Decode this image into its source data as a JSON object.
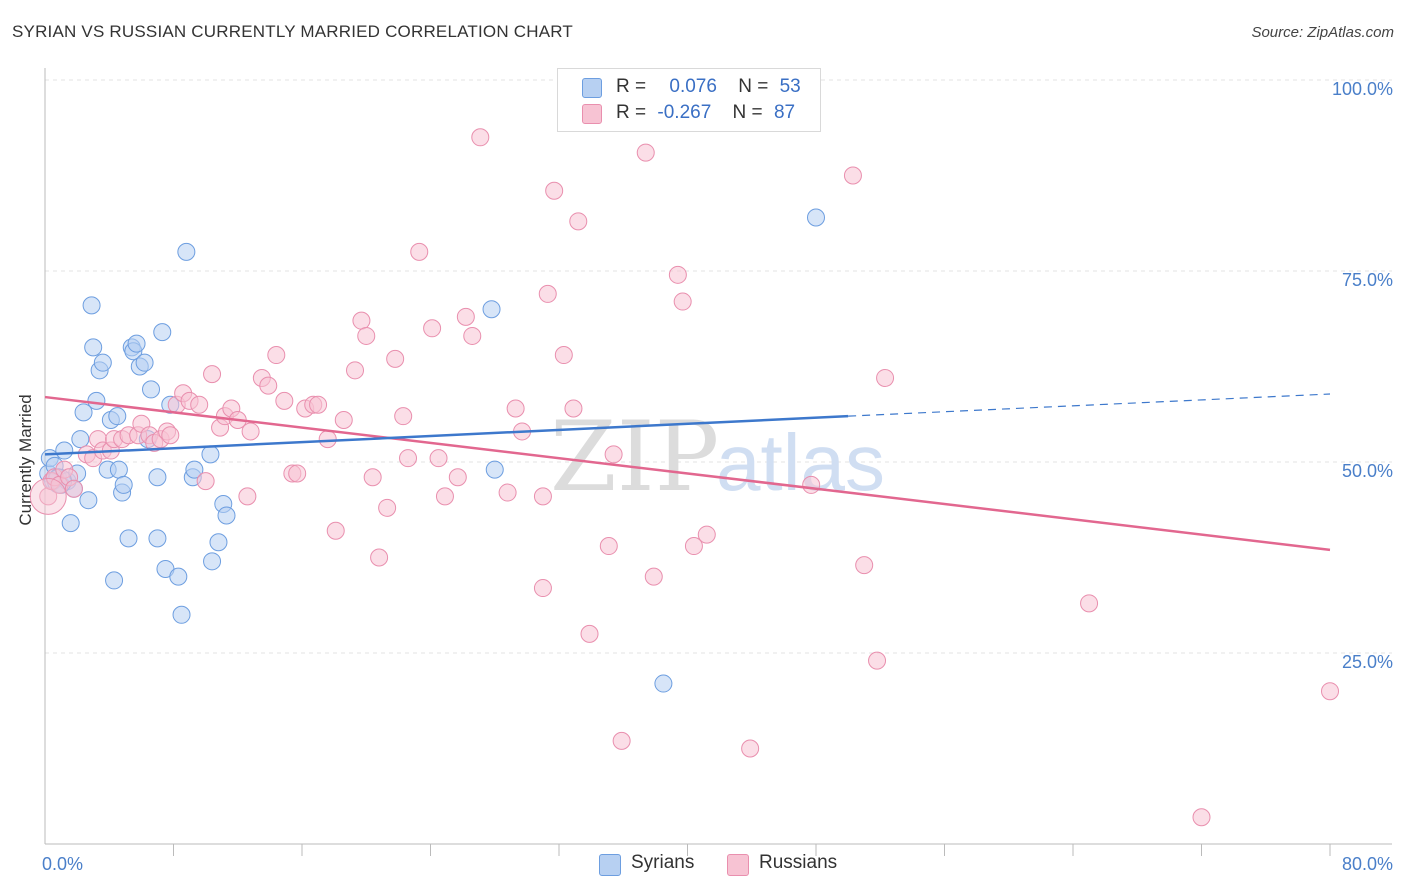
{
  "header": {
    "title": "SYRIAN VS RUSSIAN CURRENTLY MARRIED CORRELATION CHART",
    "source": "Source: ZipAtlas.com"
  },
  "stats": {
    "syrians": {
      "r_label": "R =",
      "r_value": "0.076",
      "n_label": "N =",
      "n_value": "53"
    },
    "russians": {
      "r_label": "R =",
      "r_value": "-0.267",
      "n_label": "N =",
      "n_value": "87"
    }
  },
  "legend": {
    "syrians": "Syrians",
    "russians": "Russians"
  },
  "watermark": {
    "zip": "ZIP",
    "atlas": "atlas"
  },
  "colors": {
    "syrians_fill": "#b7d0f2",
    "syrians_stroke": "#6d9ee0",
    "syrians_line": "#3d78cc",
    "russians_fill": "#f7c3d3",
    "russians_stroke": "#e98fae",
    "russians_line": "#e2678f",
    "grid": "#e3e3e3",
    "tick_text": "#4a7fc9"
  },
  "chart_data": {
    "type": "scatter",
    "title": "SYRIAN VS RUSSIAN CURRENTLY MARRIED CORRELATION CHART",
    "xlabel": "",
    "ylabel": "Currently Married",
    "xlim": [
      0,
      80
    ],
    "ylim": [
      0,
      100
    ],
    "x_tick_labels": [
      "0.0%",
      "80.0%"
    ],
    "y_ticks": [
      25,
      50,
      75,
      100
    ],
    "y_tick_labels": [
      "25.0%",
      "50.0%",
      "75.0%",
      "100.0%"
    ],
    "grid": true,
    "legend_position": "bottom-center",
    "series": [
      {
        "name": "Syrians",
        "r": 0.076,
        "n": 53,
        "trend": {
          "x": [
            0,
            50
          ],
          "y": [
            51.0,
            56.0
          ],
          "dashed_to": [
            80,
            58.9
          ]
        },
        "points": [
          [
            0.2,
            48.5
          ],
          [
            0.3,
            50.5
          ],
          [
            0.5,
            47.5
          ],
          [
            0.6,
            49.5
          ],
          [
            0.8,
            48.0
          ],
          [
            1.0,
            47.0
          ],
          [
            1.2,
            51.5
          ],
          [
            1.4,
            47.5
          ],
          [
            1.6,
            42.0
          ],
          [
            1.8,
            46.5
          ],
          [
            2.0,
            48.5
          ],
          [
            2.2,
            53.0
          ],
          [
            2.4,
            56.5
          ],
          [
            2.7,
            45.0
          ],
          [
            2.9,
            70.5
          ],
          [
            3.0,
            65.0
          ],
          [
            3.2,
            58.0
          ],
          [
            3.4,
            62.0
          ],
          [
            3.6,
            63.0
          ],
          [
            3.9,
            49.0
          ],
          [
            4.1,
            55.5
          ],
          [
            4.3,
            34.5
          ],
          [
            4.5,
            56.0
          ],
          [
            4.6,
            49.0
          ],
          [
            4.8,
            46.0
          ],
          [
            4.9,
            47.0
          ],
          [
            5.2,
            40.0
          ],
          [
            5.4,
            65.0
          ],
          [
            5.5,
            64.5
          ],
          [
            5.7,
            65.5
          ],
          [
            5.9,
            62.5
          ],
          [
            6.2,
            63.0
          ],
          [
            6.4,
            53.0
          ],
          [
            6.6,
            59.5
          ],
          [
            7.0,
            48.0
          ],
          [
            7.0,
            40.0
          ],
          [
            7.3,
            67.0
          ],
          [
            7.5,
            36.0
          ],
          [
            7.8,
            57.5
          ],
          [
            8.3,
            35.0
          ],
          [
            8.5,
            30.0
          ],
          [
            8.8,
            77.5
          ],
          [
            9.2,
            48.0
          ],
          [
            9.3,
            49.0
          ],
          [
            10.3,
            51.0
          ],
          [
            10.4,
            37.0
          ],
          [
            10.8,
            39.5
          ],
          [
            11.1,
            44.5
          ],
          [
            11.3,
            43.0
          ],
          [
            27.8,
            70.0
          ],
          [
            28.0,
            49.0
          ],
          [
            38.5,
            21.0
          ],
          [
            48.0,
            82.0
          ]
        ]
      },
      {
        "name": "Russians",
        "r": -0.267,
        "n": 87,
        "trend": {
          "x": [
            0,
            80
          ],
          "y": [
            58.5,
            38.5
          ]
        },
        "points": [
          [
            0.2,
            45.5
          ],
          [
            0.4,
            47.5
          ],
          [
            0.6,
            48.0
          ],
          [
            0.9,
            47.0
          ],
          [
            1.2,
            49.0
          ],
          [
            1.5,
            48.0
          ],
          [
            1.8,
            46.5
          ],
          [
            2.6,
            51.0
          ],
          [
            3.0,
            50.5
          ],
          [
            3.3,
            53.0
          ],
          [
            3.6,
            51.5
          ],
          [
            4.1,
            51.5
          ],
          [
            4.3,
            53.0
          ],
          [
            4.8,
            53.0
          ],
          [
            5.2,
            53.5
          ],
          [
            5.8,
            53.5
          ],
          [
            6.0,
            55.0
          ],
          [
            6.5,
            53.5
          ],
          [
            6.8,
            52.5
          ],
          [
            7.2,
            53.0
          ],
          [
            7.6,
            54.0
          ],
          [
            7.8,
            53.5
          ],
          [
            8.2,
            57.5
          ],
          [
            8.6,
            59.0
          ],
          [
            9.0,
            58.0
          ],
          [
            9.6,
            57.5
          ],
          [
            10.0,
            47.5
          ],
          [
            10.4,
            61.5
          ],
          [
            10.9,
            54.5
          ],
          [
            11.2,
            56.0
          ],
          [
            11.6,
            57.0
          ],
          [
            12.0,
            55.5
          ],
          [
            12.6,
            45.5
          ],
          [
            12.8,
            54.0
          ],
          [
            13.5,
            61.0
          ],
          [
            13.9,
            60.0
          ],
          [
            14.4,
            64.0
          ],
          [
            14.9,
            58.0
          ],
          [
            15.4,
            48.5
          ],
          [
            15.7,
            48.5
          ],
          [
            16.2,
            57.0
          ],
          [
            16.7,
            57.5
          ],
          [
            17.0,
            57.5
          ],
          [
            17.6,
            53.0
          ],
          [
            18.1,
            41.0
          ],
          [
            18.6,
            55.5
          ],
          [
            19.3,
            62.0
          ],
          [
            19.7,
            68.5
          ],
          [
            20.0,
            66.5
          ],
          [
            20.4,
            48.0
          ],
          [
            20.8,
            37.5
          ],
          [
            21.3,
            44.0
          ],
          [
            21.8,
            63.5
          ],
          [
            22.3,
            56.0
          ],
          [
            22.6,
            50.5
          ],
          [
            23.3,
            77.5
          ],
          [
            24.1,
            67.5
          ],
          [
            24.5,
            50.5
          ],
          [
            24.9,
            45.5
          ],
          [
            25.7,
            48.0
          ],
          [
            26.2,
            69.0
          ],
          [
            26.6,
            66.5
          ],
          [
            27.1,
            92.5
          ],
          [
            28.8,
            46.0
          ],
          [
            29.3,
            57.0
          ],
          [
            29.7,
            54.0
          ],
          [
            31.0,
            45.5
          ],
          [
            31.0,
            33.5
          ],
          [
            31.3,
            72.0
          ],
          [
            31.7,
            85.5
          ],
          [
            32.3,
            64.0
          ],
          [
            32.9,
            57.0
          ],
          [
            33.2,
            81.5
          ],
          [
            33.9,
            27.5
          ],
          [
            35.1,
            39.0
          ],
          [
            35.4,
            51.0
          ],
          [
            35.9,
            13.5
          ],
          [
            37.4,
            90.5
          ],
          [
            37.9,
            35.0
          ],
          [
            39.4,
            74.5
          ],
          [
            39.7,
            71.0
          ],
          [
            40.4,
            39.0
          ],
          [
            41.2,
            40.5
          ],
          [
            43.9,
            12.5
          ],
          [
            47.7,
            47.0
          ],
          [
            50.3,
            87.5
          ],
          [
            51.0,
            36.5
          ],
          [
            51.8,
            24.0
          ],
          [
            52.3,
            61.0
          ],
          [
            65.0,
            31.5
          ],
          [
            72.0,
            3.5
          ],
          [
            80.0,
            20.0
          ]
        ]
      }
    ]
  }
}
